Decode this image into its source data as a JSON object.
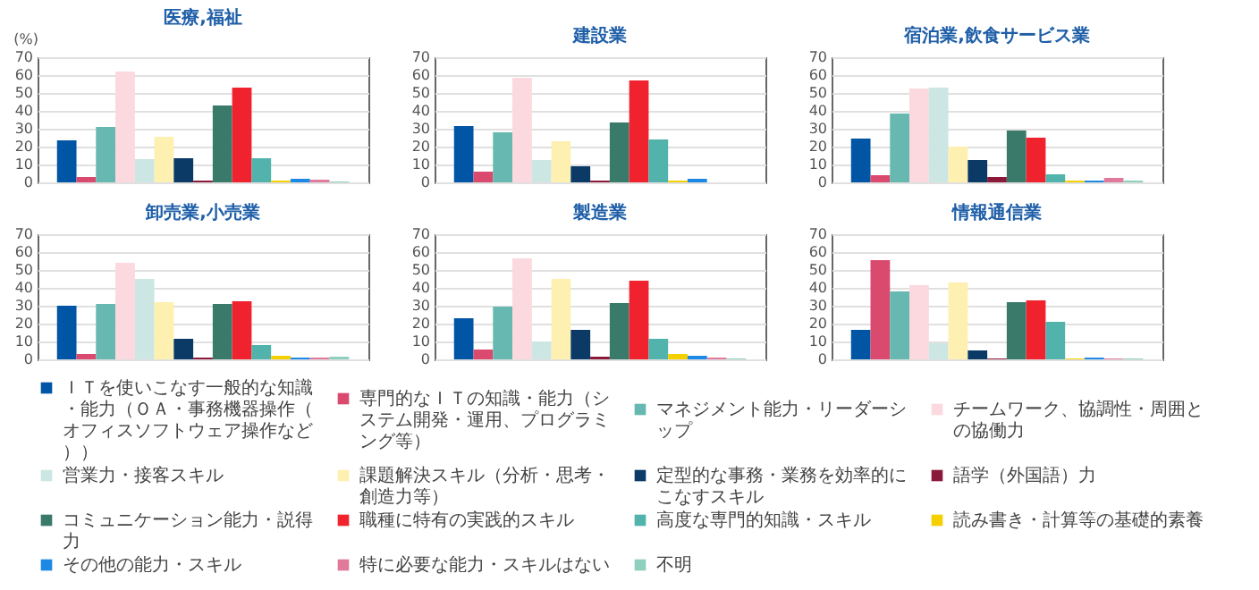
{
  "chart_data": [
    {
      "type": "bar",
      "title": "医療,福祉",
      "ylabel": "(%)",
      "categories": [
        null
      ],
      "ylim": [
        0,
        70
      ],
      "yticks": [
        0,
        10,
        20,
        30,
        40,
        50,
        60,
        70
      ],
      "grid": "y",
      "legend": "bottom",
      "series": [
        {
          "name": "ＩＴを使いこなす一般的な知識・能力（ＯＡ・事務機器操作（オフィスソフトウェア操作など））",
          "color": "#0055a5",
          "values": [
            23.5
          ]
        },
        {
          "name": "専門的なＩＴの知識・能力（システム開発・運用、プログラミング等）",
          "color": "#d94a6e",
          "values": [
            3
          ]
        },
        {
          "name": "マネジメント能力・リーダーシップ",
          "color": "#66b8b0",
          "values": [
            31
          ]
        },
        {
          "name": "チームワーク、協調性・周囲との協働力",
          "color": "#fbd9de",
          "values": [
            62
          ]
        },
        {
          "name": "営業力・接客スキル",
          "color": "#cce6e3",
          "values": [
            13
          ]
        },
        {
          "name": "課題解決スキル（分析・思考・創造力等）",
          "color": "#fdf0b0",
          "values": [
            25.5
          ]
        },
        {
          "name": "定型的な事務・業務を効率的にこなすスキル",
          "color": "#0b3a66",
          "values": [
            13.5
          ]
        },
        {
          "name": "語学（外国語）力",
          "color": "#8b1a3a",
          "values": [
            1
          ]
        },
        {
          "name": "コミュニケーション能力・説得力",
          "color": "#3a7a6a",
          "values": [
            43
          ]
        },
        {
          "name": "職種に特有の実践的スキル",
          "color": "#f0222e",
          "values": [
            53
          ]
        },
        {
          "name": "高度な専門的知識・スキル",
          "color": "#52b3ad",
          "values": [
            13.5
          ]
        },
        {
          "name": "読み書き・計算等の基礎的素養",
          "color": "#f5d000",
          "values": [
            1
          ]
        },
        {
          "name": "その他の能力・スキル",
          "color": "#1e88e5",
          "values": [
            2
          ]
        },
        {
          "name": "特に必要な能力・スキルはない",
          "color": "#e07a9a",
          "values": [
            1.5
          ]
        },
        {
          "name": "不明",
          "color": "#8fcfbf",
          "values": [
            0.5
          ]
        }
      ]
    },
    {
      "type": "bar",
      "title": "建設業",
      "categories": [
        null
      ],
      "ylim": [
        0,
        70
      ],
      "yticks": [
        0,
        10,
        20,
        30,
        40,
        50,
        60,
        70
      ],
      "grid": "y",
      "series": [
        {
          "color": "#0055a5",
          "values": [
            31.5
          ]
        },
        {
          "color": "#d94a6e",
          "values": [
            6
          ]
        },
        {
          "color": "#66b8b0",
          "values": [
            28
          ]
        },
        {
          "color": "#fbd9de",
          "values": [
            58.5
          ]
        },
        {
          "color": "#cce6e3",
          "values": [
            12.5
          ]
        },
        {
          "color": "#fdf0b0",
          "values": [
            23
          ]
        },
        {
          "color": "#0b3a66",
          "values": [
            9
          ]
        },
        {
          "color": "#8b1a3a",
          "values": [
            1
          ]
        },
        {
          "color": "#3a7a6a",
          "values": [
            33.5
          ]
        },
        {
          "color": "#f0222e",
          "values": [
            57
          ]
        },
        {
          "color": "#52b3ad",
          "values": [
            24
          ]
        },
        {
          "color": "#f5d000",
          "values": [
            1
          ]
        },
        {
          "color": "#1e88e5",
          "values": [
            2
          ]
        },
        {
          "color": "#e07a9a",
          "values": [
            0
          ]
        },
        {
          "color": "#8fcfbf",
          "values": [
            0
          ]
        }
      ]
    },
    {
      "type": "bar",
      "title": "宿泊業,飲食サービス業",
      "categories": [
        null
      ],
      "ylim": [
        0,
        70
      ],
      "yticks": [
        0,
        10,
        20,
        30,
        40,
        50,
        60,
        70
      ],
      "grid": "y",
      "series": [
        {
          "color": "#0055a5",
          "values": [
            24.5
          ]
        },
        {
          "color": "#d94a6e",
          "values": [
            4
          ]
        },
        {
          "color": "#66b8b0",
          "values": [
            38.5
          ]
        },
        {
          "color": "#fbd9de",
          "values": [
            52.5
          ]
        },
        {
          "color": "#cce6e3",
          "values": [
            53
          ]
        },
        {
          "color": "#fdf0b0",
          "values": [
            20
          ]
        },
        {
          "color": "#0b3a66",
          "values": [
            12.5
          ]
        },
        {
          "color": "#8b1a3a",
          "values": [
            3
          ]
        },
        {
          "color": "#3a7a6a",
          "values": [
            29
          ]
        },
        {
          "color": "#f0222e",
          "values": [
            25
          ]
        },
        {
          "color": "#52b3ad",
          "values": [
            4.5
          ]
        },
        {
          "color": "#f5d000",
          "values": [
            1
          ]
        },
        {
          "color": "#1e88e5",
          "values": [
            1
          ]
        },
        {
          "color": "#e07a9a",
          "values": [
            2.5
          ]
        },
        {
          "color": "#8fcfbf",
          "values": [
            1
          ]
        }
      ]
    },
    {
      "type": "bar",
      "title": "卸売業,小売業",
      "categories": [
        null
      ],
      "ylim": [
        0,
        70
      ],
      "yticks": [
        0,
        10,
        20,
        30,
        40,
        50,
        60,
        70
      ],
      "grid": "y",
      "series": [
        {
          "color": "#0055a5",
          "values": [
            30
          ]
        },
        {
          "color": "#d94a6e",
          "values": [
            3
          ]
        },
        {
          "color": "#66b8b0",
          "values": [
            31
          ]
        },
        {
          "color": "#fbd9de",
          "values": [
            54
          ]
        },
        {
          "color": "#cce6e3",
          "values": [
            45
          ]
        },
        {
          "color": "#fdf0b0",
          "values": [
            32
          ]
        },
        {
          "color": "#0b3a66",
          "values": [
            11.5
          ]
        },
        {
          "color": "#8b1a3a",
          "values": [
            1
          ]
        },
        {
          "color": "#3a7a6a",
          "values": [
            31
          ]
        },
        {
          "color": "#f0222e",
          "values": [
            32.5
          ]
        },
        {
          "color": "#52b3ad",
          "values": [
            8
          ]
        },
        {
          "color": "#f5d000",
          "values": [
            2
          ]
        },
        {
          "color": "#1e88e5",
          "values": [
            1
          ]
        },
        {
          "color": "#e07a9a",
          "values": [
            1
          ]
        },
        {
          "color": "#8fcfbf",
          "values": [
            1.5
          ]
        }
      ]
    },
    {
      "type": "bar",
      "title": "製造業",
      "categories": [
        null
      ],
      "ylim": [
        0,
        70
      ],
      "yticks": [
        0,
        10,
        20,
        30,
        40,
        50,
        60,
        70
      ],
      "grid": "y",
      "series": [
        {
          "color": "#0055a5",
          "values": [
            23
          ]
        },
        {
          "color": "#d94a6e",
          "values": [
            5.5
          ]
        },
        {
          "color": "#66b8b0",
          "values": [
            29.5
          ]
        },
        {
          "color": "#fbd9de",
          "values": [
            56.5
          ]
        },
        {
          "color": "#cce6e3",
          "values": [
            10
          ]
        },
        {
          "color": "#fdf0b0",
          "values": [
            45
          ]
        },
        {
          "color": "#0b3a66",
          "values": [
            16.5
          ]
        },
        {
          "color": "#8b1a3a",
          "values": [
            1.5
          ]
        },
        {
          "color": "#3a7a6a",
          "values": [
            31.5
          ]
        },
        {
          "color": "#f0222e",
          "values": [
            44
          ]
        },
        {
          "color": "#52b3ad",
          "values": [
            11.5
          ]
        },
        {
          "color": "#f5d000",
          "values": [
            3
          ]
        },
        {
          "color": "#1e88e5",
          "values": [
            2
          ]
        },
        {
          "color": "#e07a9a",
          "values": [
            1
          ]
        },
        {
          "color": "#8fcfbf",
          "values": [
            0.5
          ]
        }
      ]
    },
    {
      "type": "bar",
      "title": "情報通信業",
      "categories": [
        null
      ],
      "ylim": [
        0,
        70
      ],
      "yticks": [
        0,
        10,
        20,
        30,
        40,
        50,
        60,
        70
      ],
      "grid": "y",
      "series": [
        {
          "color": "#0055a5",
          "values": [
            16.5
          ]
        },
        {
          "color": "#d94a6e",
          "values": [
            55.5
          ]
        },
        {
          "color": "#66b8b0",
          "values": [
            38
          ]
        },
        {
          "color": "#fbd9de",
          "values": [
            41.5
          ]
        },
        {
          "color": "#cce6e3",
          "values": [
            9
          ]
        },
        {
          "color": "#fdf0b0",
          "values": [
            43
          ]
        },
        {
          "color": "#0b3a66",
          "values": [
            5
          ]
        },
        {
          "color": "#8b1a3a",
          "values": [
            0.5
          ]
        },
        {
          "color": "#3a7a6a",
          "values": [
            32
          ]
        },
        {
          "color": "#f0222e",
          "values": [
            33
          ]
        },
        {
          "color": "#52b3ad",
          "values": [
            21
          ]
        },
        {
          "color": "#f5d000",
          "values": [
            0.5
          ]
        },
        {
          "color": "#1e88e5",
          "values": [
            1
          ]
        },
        {
          "color": "#e07a9a",
          "values": [
            0.5
          ]
        },
        {
          "color": "#8fcfbf",
          "values": [
            0.5
          ]
        }
      ]
    }
  ]
}
